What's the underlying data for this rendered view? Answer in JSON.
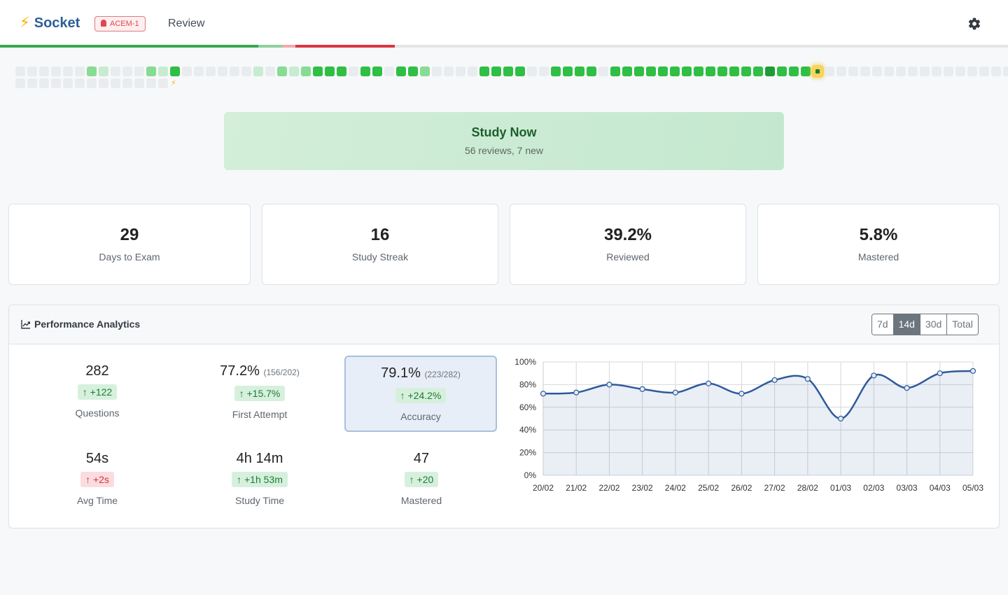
{
  "app": {
    "name": "Socket",
    "badge": "ACEM-1",
    "nav_review": "Review"
  },
  "colors": {
    "brand": "#2c5e97",
    "accent": "#f5b301",
    "heat_empty": "#e9ecef",
    "heat_levels": [
      "#c7ecd0",
      "#86dc93",
      "#2fbf44",
      "#1e9b37"
    ],
    "series": "#2e5a9c"
  },
  "heatmap": {
    "row1": [
      0,
      0,
      0,
      0,
      0,
      0,
      2,
      1,
      0,
      0,
      0,
      2,
      1,
      3,
      0,
      0,
      0,
      0,
      0,
      0,
      1,
      0,
      2,
      1,
      2,
      3,
      3,
      3,
      0,
      3,
      3,
      0,
      3,
      3,
      2,
      0,
      0,
      0,
      0,
      3,
      3,
      3,
      3,
      0,
      0,
      3,
      3,
      3,
      3,
      0,
      3,
      3,
      3,
      3,
      3,
      3,
      3,
      3,
      3,
      3,
      3,
      3,
      3,
      4,
      3,
      3,
      3,
      "today",
      0,
      0,
      0,
      0,
      0,
      0,
      0,
      0,
      0,
      0,
      0,
      0,
      0,
      0,
      0,
      0
    ],
    "row2": [
      0,
      0,
      0,
      0,
      0,
      0,
      0,
      0,
      0,
      0,
      0,
      0,
      0
    ]
  },
  "study_now": {
    "title": "Study Now",
    "subtitle": "56 reviews, 7 new"
  },
  "stats": [
    {
      "value": "29",
      "label": "Days to Exam"
    },
    {
      "value": "16",
      "label": "Study Streak"
    },
    {
      "value": "39.2%",
      "label": "Reviewed"
    },
    {
      "value": "5.8%",
      "label": "Mastered"
    }
  ],
  "analytics": {
    "title": "Performance Analytics",
    "ranges": [
      "7d",
      "14d",
      "30d",
      "Total"
    ],
    "selected_range": "14d",
    "metrics": [
      {
        "value": "282",
        "detail": "",
        "delta": "↑ +122",
        "tone": "good",
        "label": "Questions"
      },
      {
        "value": "77.2%",
        "detail": "(156/202)",
        "delta": "↑ +15.7%",
        "tone": "good",
        "label": "First Attempt"
      },
      {
        "value": "79.1%",
        "detail": "(223/282)",
        "delta": "↑ +24.2%",
        "tone": "good",
        "label": "Accuracy"
      },
      {
        "value": "54s",
        "detail": "",
        "delta": "↑ +2s",
        "tone": "bad",
        "label": "Avg Time"
      },
      {
        "value": "4h 14m",
        "detail": "",
        "delta": "↑ +1h 53m",
        "tone": "good",
        "label": "Study Time"
      },
      {
        "value": "47",
        "detail": "",
        "delta": "↑ +20",
        "tone": "good",
        "label": "Mastered"
      }
    ]
  },
  "chart_data": {
    "type": "area",
    "categories": [
      "20/02",
      "21/02",
      "22/02",
      "23/02",
      "24/02",
      "25/02",
      "26/02",
      "27/02",
      "28/02",
      "01/03",
      "02/03",
      "03/03",
      "04/03",
      "05/03"
    ],
    "series": [
      {
        "values": [
          72,
          73,
          80,
          76,
          73,
          81,
          72,
          84,
          85,
          50,
          88,
          77,
          90,
          92
        ]
      }
    ],
    "y_ticks": [
      "0%",
      "20%",
      "40%",
      "60%",
      "80%",
      "100%"
    ],
    "ylim": [
      0,
      100
    ],
    "grid": true,
    "smooth": true
  }
}
